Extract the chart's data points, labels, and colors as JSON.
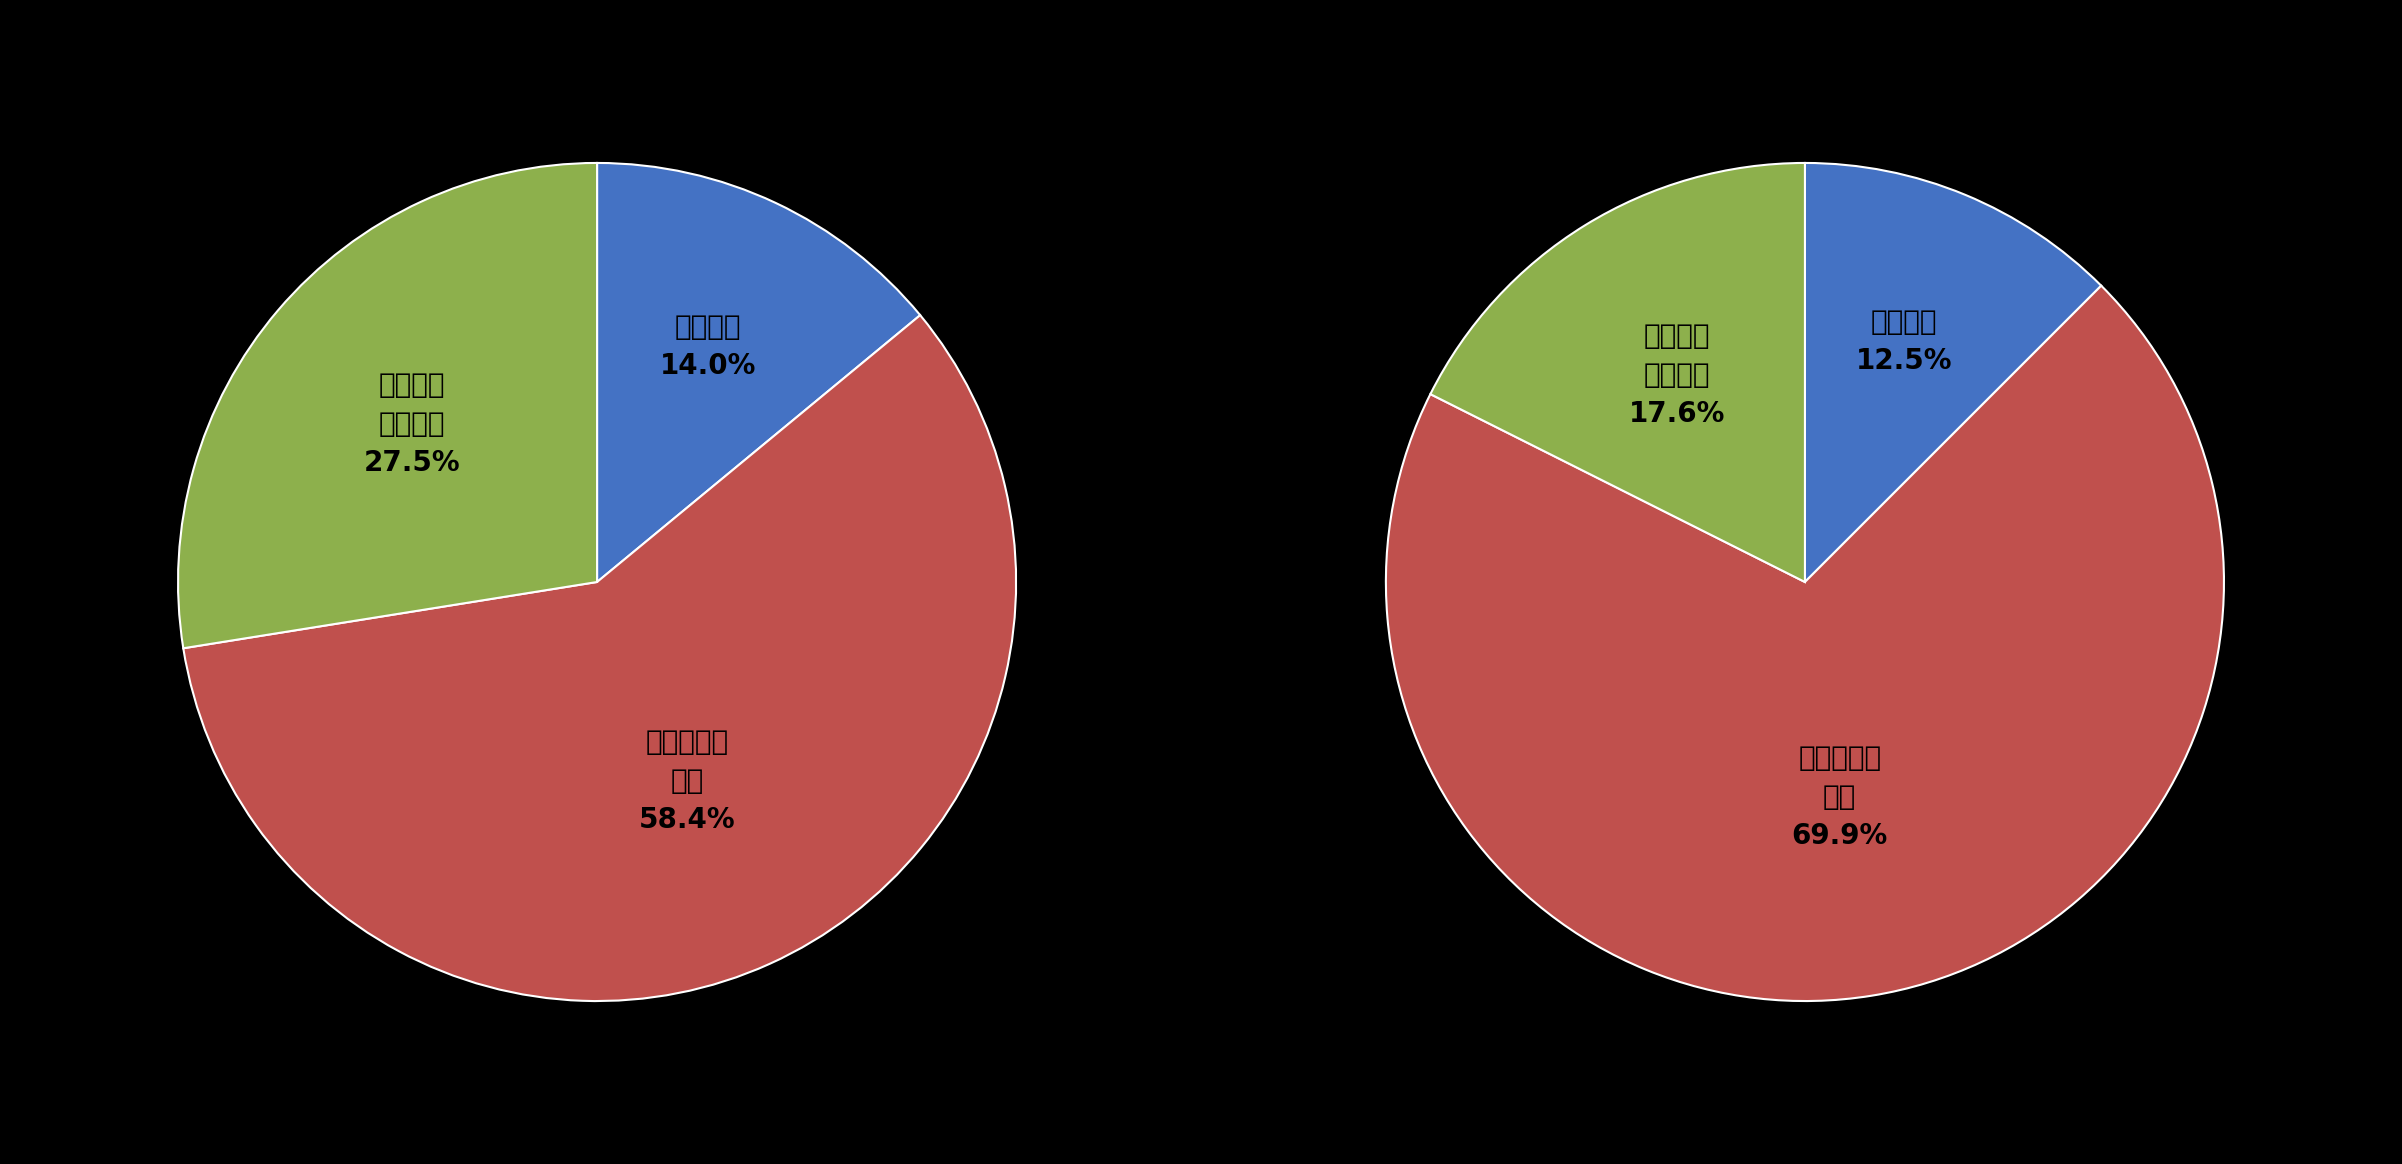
{
  "background_color": "#000000",
  "charts": [
    {
      "values": [
        14.0,
        58.4,
        27.5
      ],
      "label_lines": [
        [
          "民間企業",
          "14.0%"
        ],
        [
          "大学・研究",
          "機関",
          "58.4%"
        ],
        [
          "国立研究",
          "開発法人",
          "27.5%"
        ]
      ],
      "colors": [
        "#4472C4",
        "#C0504D",
        "#8DB04C"
      ],
      "startangle": 90
    },
    {
      "values": [
        12.5,
        69.9,
        17.6
      ],
      "label_lines": [
        [
          "民間企業",
          "12.5%"
        ],
        [
          "大学・研究",
          "機関",
          "69.9%"
        ],
        [
          "国立研究",
          "開発法人",
          "17.6%"
        ]
      ],
      "colors": [
        "#4472C4",
        "#C0504D",
        "#8DB04C"
      ],
      "startangle": 90
    }
  ],
  "label_fontsize": 20,
  "text_color": "#000000",
  "label_radii": [
    0.6,
    0.55,
    0.58
  ]
}
